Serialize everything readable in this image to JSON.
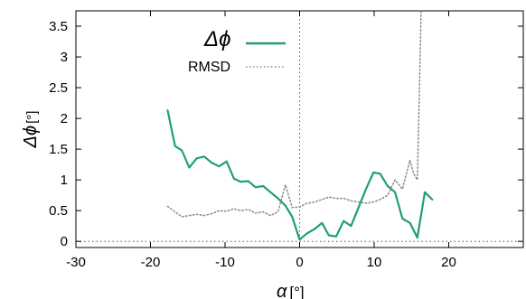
{
  "chart_data": {
    "type": "line",
    "xlabel": {
      "symbol": "α",
      "unit": "[°]"
    },
    "ylabel": {
      "symbol": "Δϕ",
      "unit": "[°]"
    },
    "xlim": [
      -30,
      30
    ],
    "ylim": [
      -0.1,
      3.75
    ],
    "xticks": [
      -30,
      -20,
      -10,
      0,
      10,
      20
    ],
    "yticks": [
      0,
      0.5,
      1,
      1.5,
      2,
      2.5,
      3,
      3.5
    ],
    "legend_position": "top-left",
    "reference_lines": {
      "horizontal_y": 0,
      "vertical_x": 0
    },
    "series": [
      {
        "name": "Δϕ",
        "color": "#1f9e78",
        "style": "solid",
        "x": [
          -17.7,
          -16.7,
          -15.8,
          -14.8,
          -13.8,
          -12.8,
          -11.8,
          -10.8,
          -9.8,
          -8.8,
          -7.9,
          -6.9,
          -5.9,
          -4.9,
          -3.9,
          -2.9,
          -1.9,
          -1.0,
          0.0,
          1.0,
          2.0,
          3.0,
          3.9,
          4.9,
          5.9,
          6.9,
          7.9,
          8.9,
          9.9,
          10.8,
          11.8,
          12.8,
          13.8,
          14.8,
          15.8,
          16.8,
          17.8
        ],
        "y": [
          2.13,
          1.55,
          1.48,
          1.2,
          1.35,
          1.38,
          1.28,
          1.22,
          1.3,
          1.02,
          0.97,
          0.98,
          0.88,
          0.9,
          0.8,
          0.7,
          0.58,
          0.4,
          0.03,
          0.13,
          0.2,
          0.3,
          0.1,
          0.08,
          0.33,
          0.25,
          0.55,
          0.85,
          1.12,
          1.1,
          0.9,
          0.8,
          0.37,
          0.3,
          0.06,
          0.8,
          0.68
        ]
      },
      {
        "name": "RMSD",
        "color": "#8a8a8a",
        "style": "dotted",
        "x": [
          -17.7,
          -16.7,
          -15.8,
          -14.8,
          -13.8,
          -12.8,
          -11.8,
          -10.8,
          -9.8,
          -8.8,
          -7.9,
          -6.9,
          -5.9,
          -4.9,
          -3.9,
          -2.9,
          -1.9,
          -1.0,
          0.0,
          1.0,
          2.0,
          3.0,
          3.9,
          4.9,
          5.9,
          6.9,
          7.9,
          8.9,
          9.9,
          10.8,
          11.8,
          12.8,
          13.8,
          14.8,
          15.3,
          15.8,
          16.3
        ],
        "y": [
          0.57,
          0.48,
          0.4,
          0.42,
          0.44,
          0.42,
          0.45,
          0.5,
          0.49,
          0.53,
          0.5,
          0.52,
          0.46,
          0.48,
          0.42,
          0.48,
          0.92,
          0.55,
          0.56,
          0.62,
          0.64,
          0.68,
          0.72,
          0.7,
          0.7,
          0.66,
          0.64,
          0.62,
          0.64,
          0.68,
          0.75,
          1.0,
          0.85,
          1.32,
          1.1,
          1.0,
          3.75
        ]
      }
    ]
  }
}
